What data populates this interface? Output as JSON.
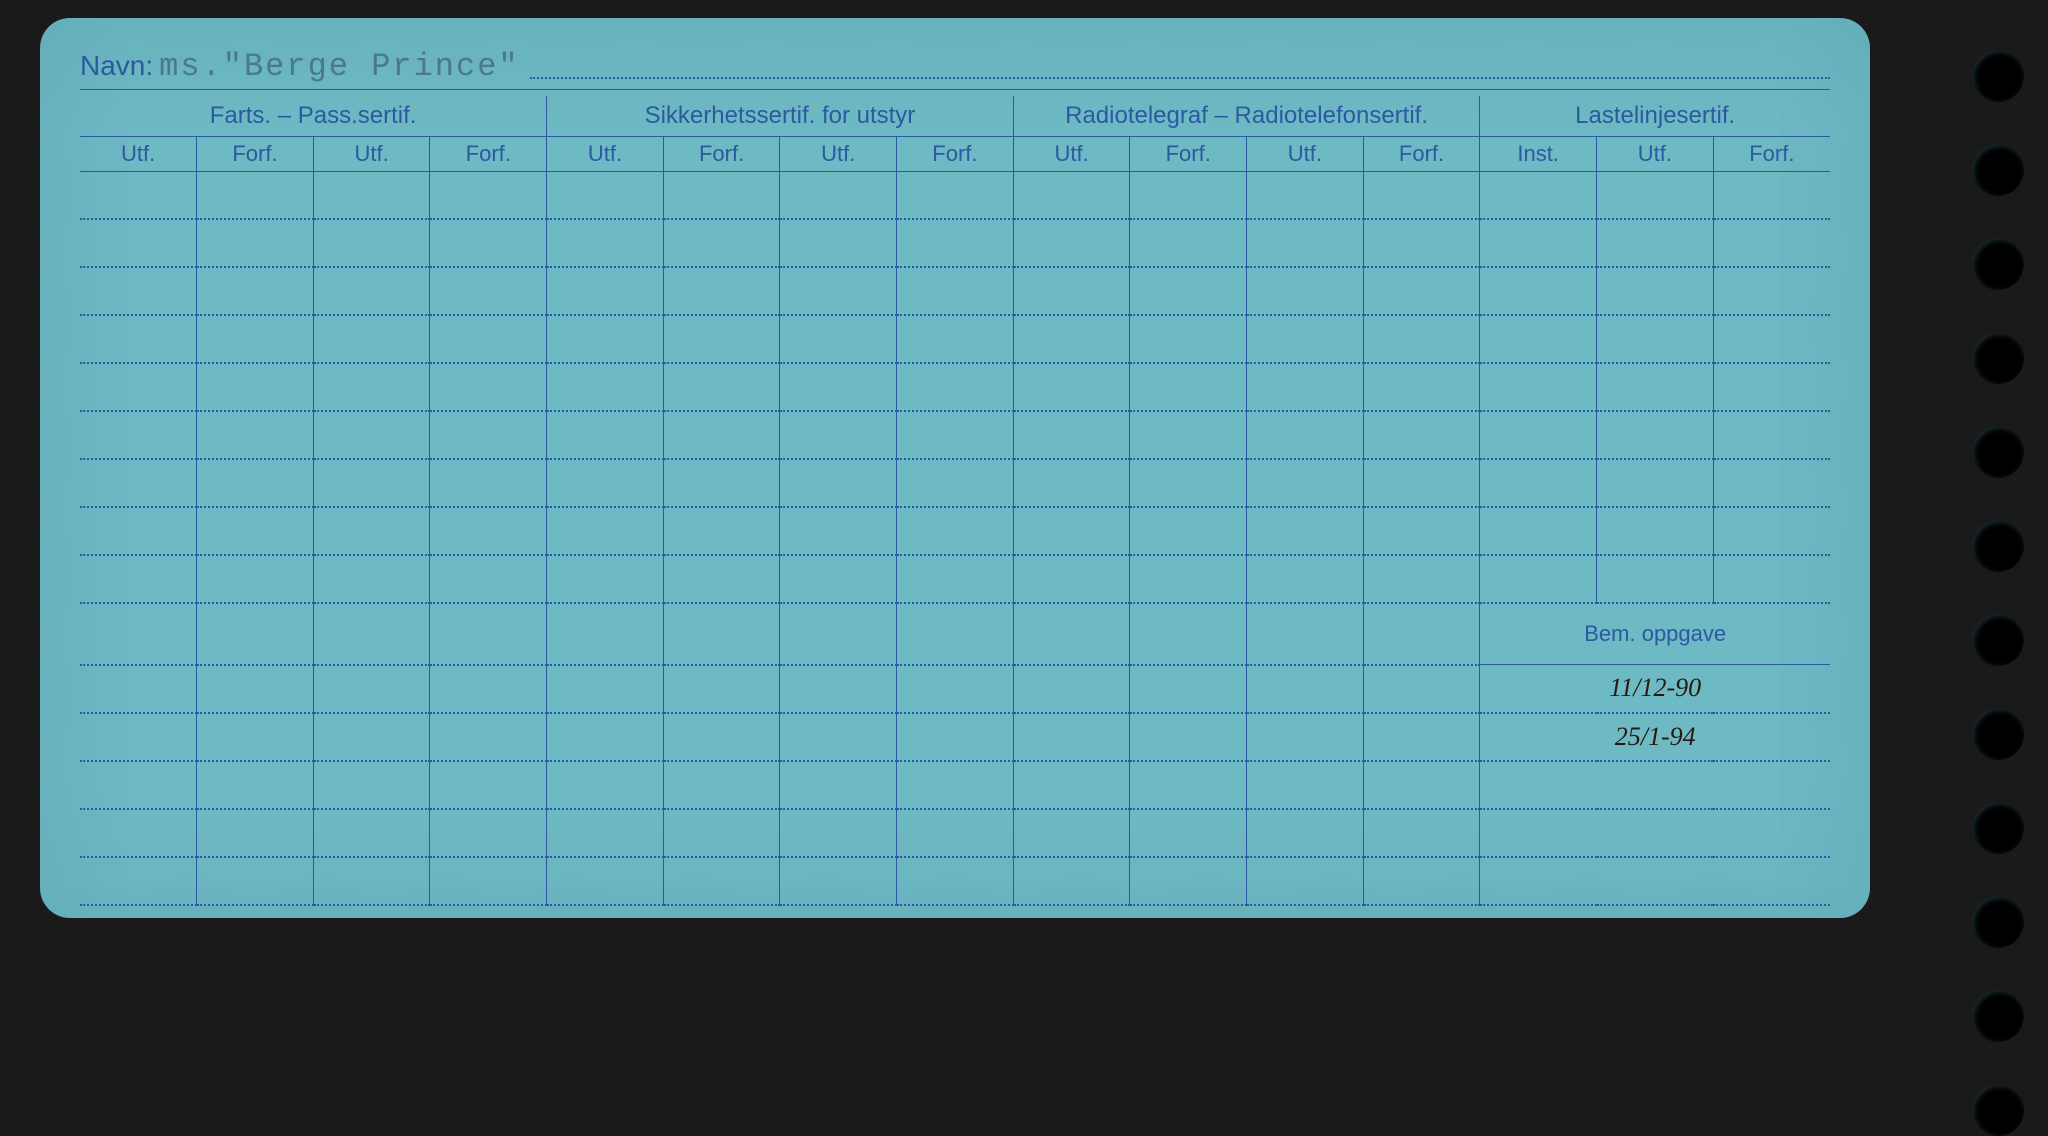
{
  "name_label": "Navn:",
  "name_value": "ms.\"Berge Prince\"",
  "groups": [
    {
      "label": "Farts. – Pass.sertif.",
      "cols": [
        "Utf.",
        "Forf.",
        "Utf.",
        "Forf."
      ]
    },
    {
      "label": "Sikkerhetssertif. for utstyr",
      "cols": [
        "Utf.",
        "Forf.",
        "Utf.",
        "Forf."
      ]
    },
    {
      "label": "Radiotelegraf – Radiotelefonsertif.",
      "cols": [
        "Utf.",
        "Forf.",
        "Utf.",
        "Forf."
      ]
    },
    {
      "label": "Lastelinjesertif.",
      "cols": [
        "Inst.",
        "Utf.",
        "Forf."
      ]
    }
  ],
  "bem_label": "Bem. oppgave",
  "handwritten": [
    "11/12-90",
    "25/1-94"
  ],
  "rows_before_bem": 9,
  "rows_after_bem": 5,
  "holes": 12,
  "colors": {
    "card": "#6db9c4",
    "ink": "#2c5aa0",
    "hw": "#2a1810",
    "bg": "#1a1a1a"
  }
}
